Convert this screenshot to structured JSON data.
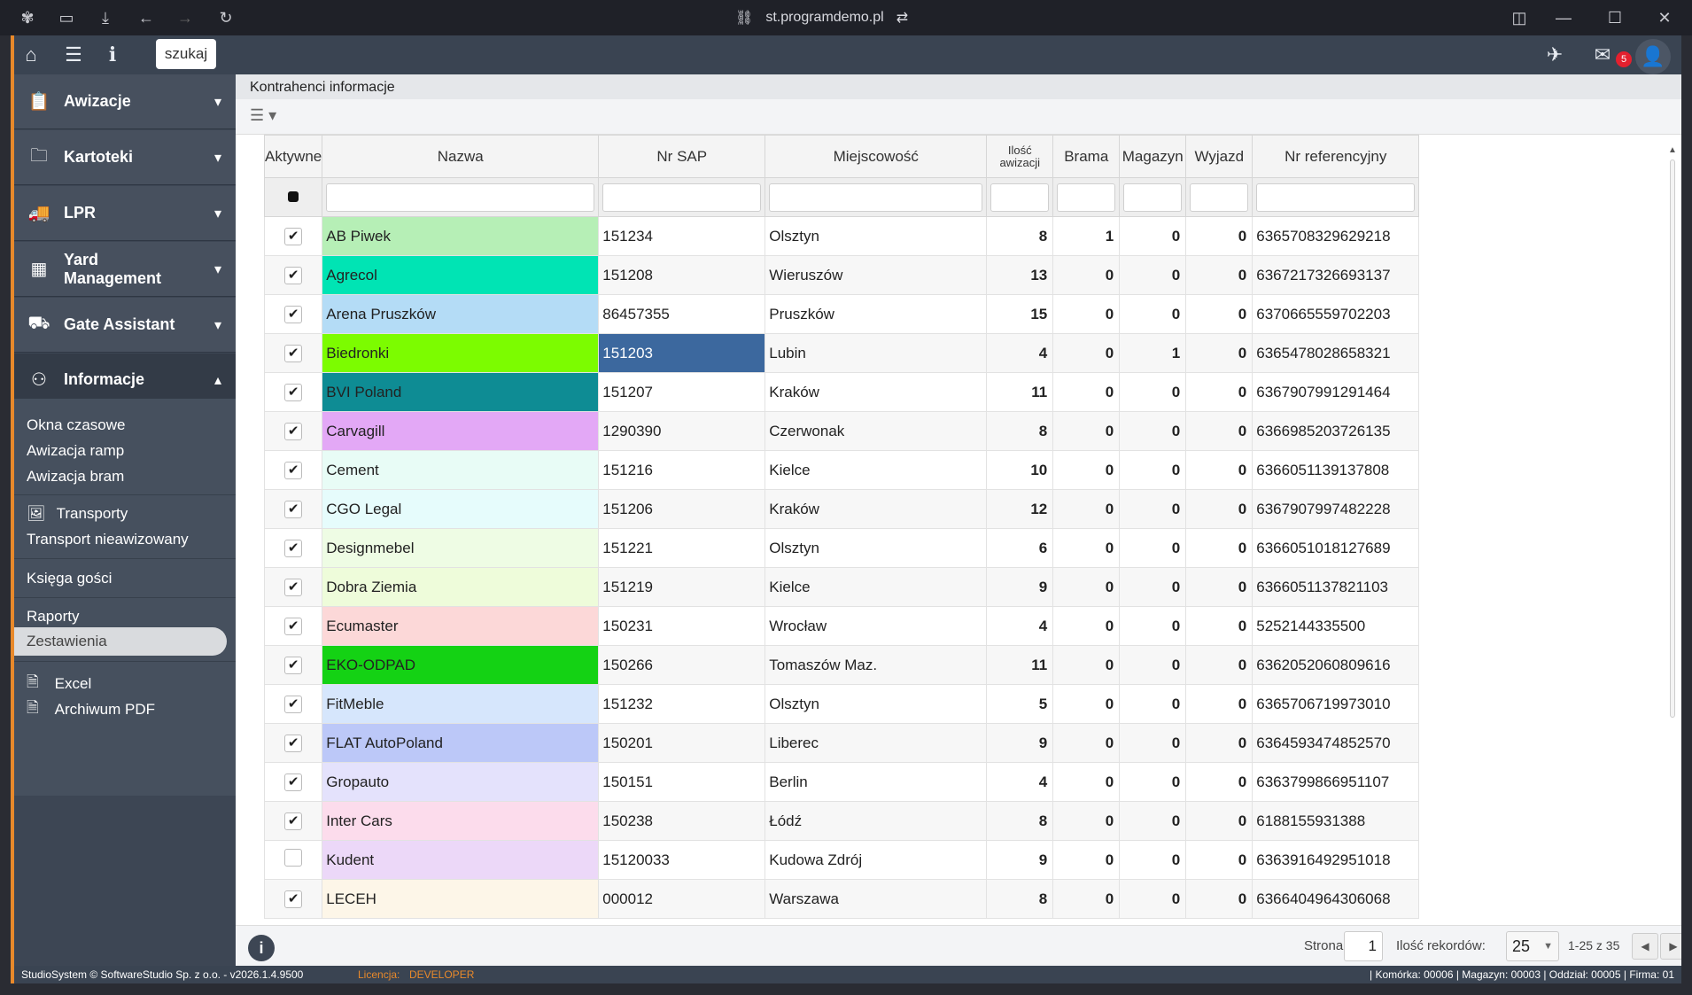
{
  "browser": {
    "url": "st.programdemo.pl"
  },
  "topbar": {
    "search_label": "szukaj",
    "mail_count": "5"
  },
  "sidebar": {
    "groups": [
      {
        "label": "Awizacje"
      },
      {
        "label": "Kartoteki"
      },
      {
        "label": "LPR"
      },
      {
        "label": "Yard Management"
      },
      {
        "label": "Gate Assistant"
      },
      {
        "label": "Informacje"
      }
    ],
    "subitems": [
      "Okna czasowe",
      "Awizacja ramp",
      "Awizacja bram",
      "Transporty",
      "Transport nieawizowany",
      "Księga gości",
      "Raporty",
      "Zestawienia",
      "Excel",
      "Archiwum PDF"
    ]
  },
  "main": {
    "title": "Kontrahenci informacje"
  },
  "table": {
    "headers": {
      "active": "Aktywne",
      "name": "Nazwa",
      "sap": "Nr SAP",
      "city": "Miejscowość",
      "count": "Ilość awizacji",
      "gate": "Brama",
      "store": "Magazyn",
      "exit": "Wyjazd",
      "ref": "Nr referencyjny"
    },
    "rows": [
      {
        "name": "AB Piwek",
        "sap": "151234",
        "city": "Olsztyn",
        "count": "8",
        "gate": "1",
        "store": "0",
        "exit": "0",
        "ref": "6365708329629218",
        "active": true,
        "color": "#b6efb6"
      },
      {
        "name": "Agrecol",
        "sap": "151208",
        "city": "Wieruszów",
        "count": "13",
        "gate": "0",
        "store": "0",
        "exit": "0",
        "ref": "6367217326693137",
        "active": true,
        "color": "#00e4b4"
      },
      {
        "name": "Arena Pruszków",
        "sap": "86457355",
        "city": "Pruszków",
        "count": "15",
        "gate": "0",
        "store": "0",
        "exit": "0",
        "ref": "6370665559702203",
        "active": true,
        "color": "#b4dcf6"
      },
      {
        "name": "Biedronki",
        "sap": "151203",
        "city": "Lubin",
        "count": "4",
        "gate": "0",
        "store": "1",
        "exit": "0",
        "ref": "6365478028658321",
        "active": true,
        "color": "#7cfc00"
      },
      {
        "name": "BVI Poland",
        "sap": "151207",
        "city": "Kraków",
        "count": "11",
        "gate": "0",
        "store": "0",
        "exit": "0",
        "ref": "6367907991291464",
        "active": true,
        "color": "#0e8c94"
      },
      {
        "name": "Carvagill",
        "sap": "1290390",
        "city": "Czerwonak",
        "count": "8",
        "gate": "0",
        "store": "0",
        "exit": "0",
        "ref": "6366985203726135",
        "active": true,
        "color": "#e3a8f6"
      },
      {
        "name": "Cement",
        "sap": "151216",
        "city": "Kielce",
        "count": "10",
        "gate": "0",
        "store": "0",
        "exit": "0",
        "ref": "6366051139137808",
        "active": true,
        "color": "#e8fcf6"
      },
      {
        "name": "CGO Legal",
        "sap": "151206",
        "city": "Kraków",
        "count": "12",
        "gate": "0",
        "store": "0",
        "exit": "0",
        "ref": "6367907997482228",
        "active": true,
        "color": "#e6fcfc"
      },
      {
        "name": "Designmebel",
        "sap": "151221",
        "city": "Olsztyn",
        "count": "6",
        "gate": "0",
        "store": "0",
        "exit": "0",
        "ref": "6366051018127689",
        "active": true,
        "color": "#eefce4"
      },
      {
        "name": "Dobra Ziemia",
        "sap": "151219",
        "city": "Kielce",
        "count": "9",
        "gate": "0",
        "store": "0",
        "exit": "0",
        "ref": "6366051137821103",
        "active": true,
        "color": "#eefcda"
      },
      {
        "name": "Ecumaster",
        "sap": "150231",
        "city": "Wrocław",
        "count": "4",
        "gate": "0",
        "store": "0",
        "exit": "0",
        "ref": "5252144335500",
        "active": true,
        "color": "#fcd8d8"
      },
      {
        "name": "EKO-ODPAD",
        "sap": "150266",
        "city": "Tomaszów Maz.",
        "count": "11",
        "gate": "0",
        "store": "0",
        "exit": "0",
        "ref": "6362052060809616",
        "active": true,
        "color": "#14d214"
      },
      {
        "name": "FitMeble",
        "sap": "151232",
        "city": "Olsztyn",
        "count": "5",
        "gate": "0",
        "store": "0",
        "exit": "0",
        "ref": "6365706719973010",
        "active": true,
        "color": "#d6e6fc"
      },
      {
        "name": "FLAT AutoPoland",
        "sap": "150201",
        "city": "Liberec",
        "count": "9",
        "gate": "0",
        "store": "0",
        "exit": "0",
        "ref": "6364593474852570",
        "active": true,
        "color": "#bcc8f8"
      },
      {
        "name": "Gropauto",
        "sap": "150151",
        "city": "Berlin",
        "count": "4",
        "gate": "0",
        "store": "0",
        "exit": "0",
        "ref": "6363799866951107",
        "active": true,
        "color": "#e4e2fc"
      },
      {
        "name": "Inter Cars",
        "sap": "150238",
        "city": "Łódź",
        "count": "8",
        "gate": "0",
        "store": "0",
        "exit": "0",
        "ref": "6188155931388",
        "active": true,
        "color": "#fcdcec"
      },
      {
        "name": "Kudent",
        "sap": "15120033",
        "city": "Kudowa Zdrój",
        "count": "9",
        "gate": "0",
        "store": "0",
        "exit": "0",
        "ref": "6363916492951018",
        "active": false,
        "color": "#ecd8f8"
      },
      {
        "name": "LECEH",
        "sap": "000012",
        "city": "Warszawa",
        "count": "8",
        "gate": "0",
        "store": "0",
        "exit": "0",
        "ref": "6366404964306068",
        "active": true,
        "color": "#fdf6e8"
      }
    ]
  },
  "pager": {
    "page_label": "Strona:",
    "page": "1",
    "records_label": "Ilość rekordów:",
    "per_page": "25",
    "range": "1-25 z 35"
  },
  "status": {
    "left": "StudioSystem © SoftwareStudio Sp. z o.o. - v2026.1.4.9500",
    "license_label": "Licencja:",
    "license": "DEVELOPER",
    "right": "| Komórka: 00006 | Magazyn: 00003 | Oddział: 00005 | Firma: 01"
  }
}
